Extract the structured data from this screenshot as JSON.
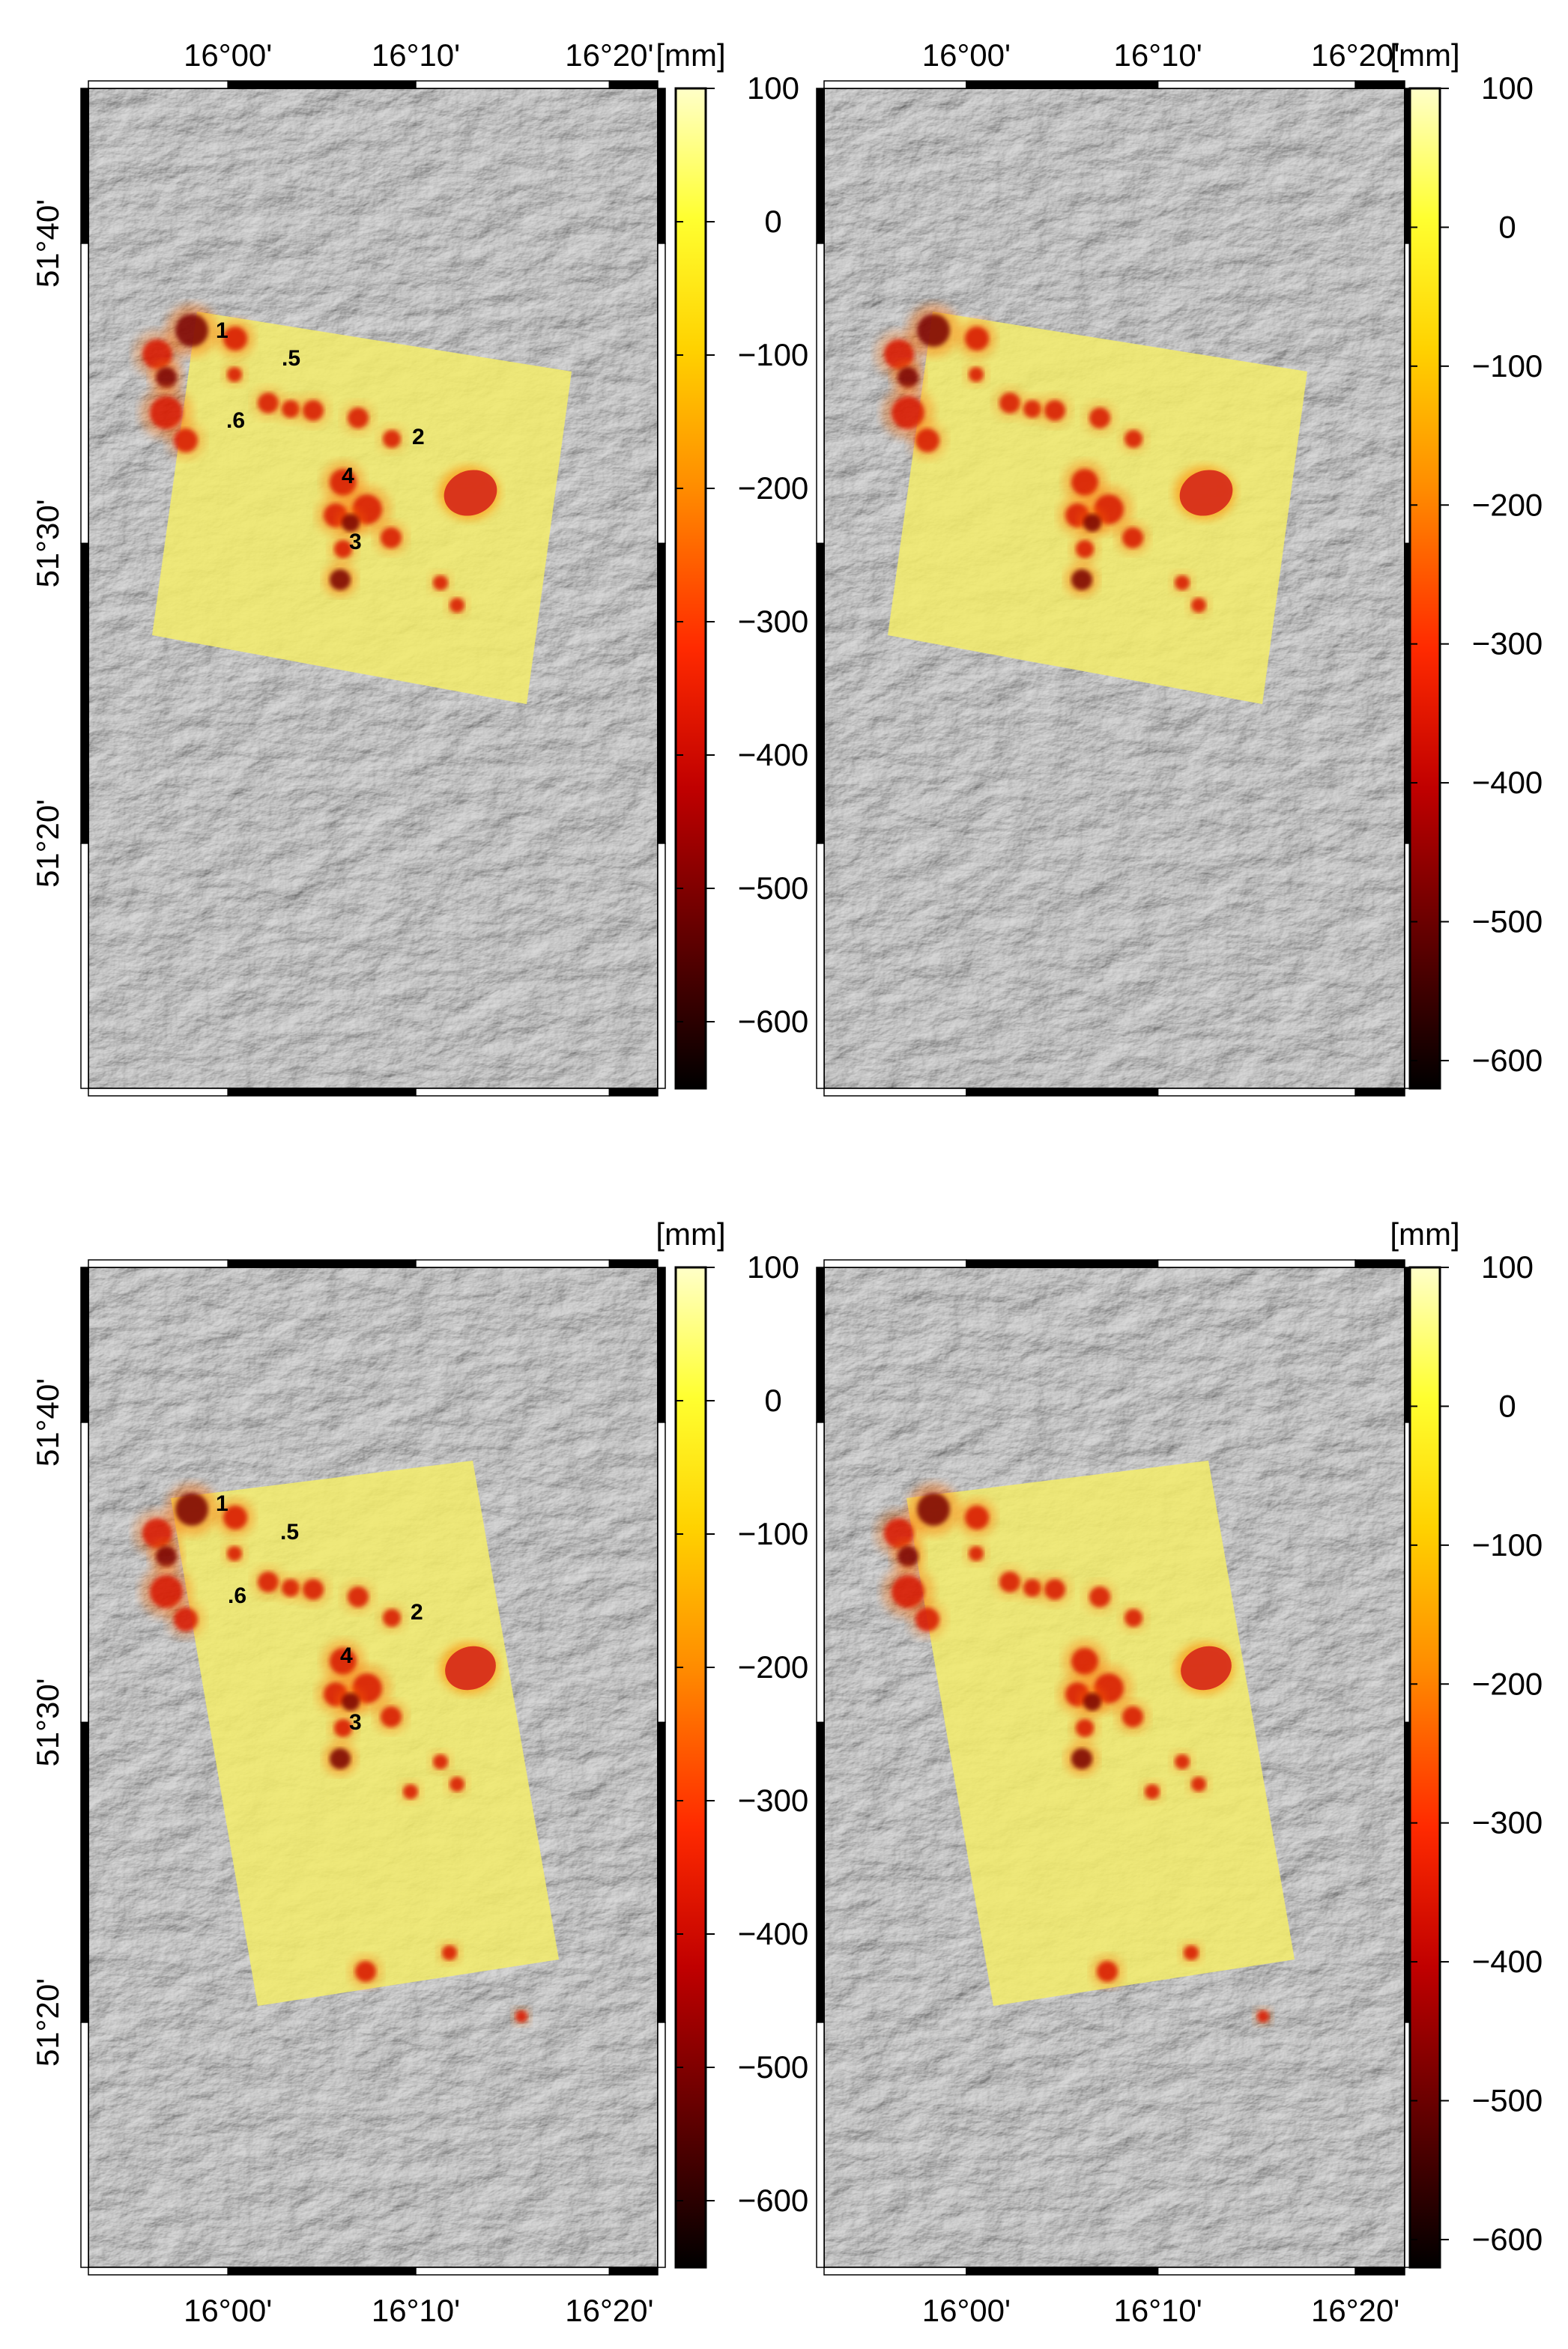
{
  "units_label": "[mm]",
  "x_ticks": [
    "16°00'",
    "16°10'",
    "16°20'"
  ],
  "y_ticks": [
    "51°40'",
    "51°30'",
    "51°20'"
  ],
  "panels": [
    {
      "id": "top-left",
      "show_top_x": true,
      "show_bottom_x": false,
      "show_y": true,
      "colorbar": {
        "ticks": [
          "100",
          "0",
          "−100",
          "−200",
          "−300",
          "−400",
          "−500",
          "−600"
        ],
        "min": -650,
        "max": 100
      },
      "point_labels": [
        "1",
        "2",
        "3",
        "4",
        ".5",
        ".6"
      ]
    },
    {
      "id": "top-right",
      "show_top_x": true,
      "show_bottom_x": false,
      "show_y": false,
      "colorbar": {
        "ticks": [
          "100",
          "0",
          "−100",
          "−200",
          "−300",
          "−400",
          "−500",
          "−600"
        ],
        "min": -620,
        "max": 100
      },
      "point_labels": []
    },
    {
      "id": "bottom-left",
      "show_top_x": false,
      "show_bottom_x": true,
      "show_y": true,
      "colorbar": {
        "ticks": [
          "100",
          "0",
          "−100",
          "−200",
          "−300",
          "−400",
          "−500",
          "−600"
        ],
        "min": -650,
        "max": 100
      },
      "point_labels": [
        "1",
        "2",
        "3",
        "4",
        ".5",
        ".6"
      ]
    },
    {
      "id": "bottom-right",
      "show_top_x": false,
      "show_bottom_x": true,
      "show_y": false,
      "colorbar": {
        "ticks": [
          "100",
          "0",
          "−100",
          "−200",
          "−300",
          "−400",
          "−500",
          "−600"
        ],
        "min": -620,
        "max": 100
      },
      "point_labels": []
    }
  ],
  "colors": {
    "ramp": [
      "#000000",
      "#5a0000",
      "#c00000",
      "#ff2a00",
      "#ff8c00",
      "#ffd200",
      "#ffff30",
      "#ffffc8"
    ],
    "terrain": "#8c8c8c",
    "overlay": "#f3ec6a"
  }
}
